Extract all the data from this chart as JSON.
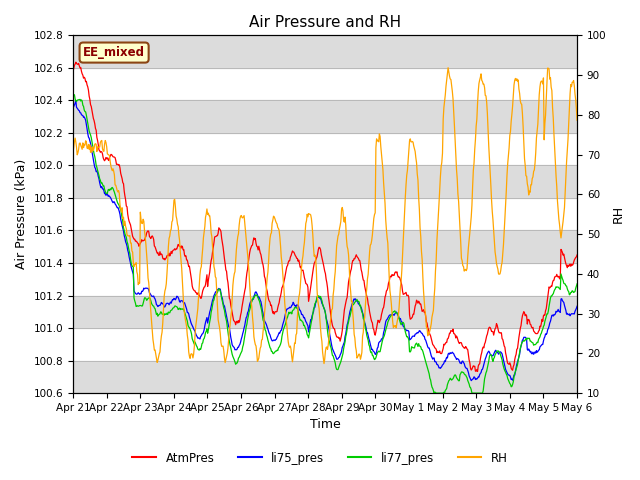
{
  "title": "Air Pressure and RH",
  "xlabel": "Time",
  "ylabel_left": "Air Pressure (kPa)",
  "ylabel_right": "RH",
  "ylim_left": [
    100.6,
    102.8
  ],
  "ylim_right": [
    10,
    100
  ],
  "yticks_left": [
    100.6,
    100.8,
    101.0,
    101.2,
    101.4,
    101.6,
    101.8,
    102.0,
    102.2,
    102.4,
    102.6,
    102.8
  ],
  "yticks_right": [
    10,
    20,
    30,
    40,
    50,
    60,
    70,
    80,
    90,
    100
  ],
  "xtick_labels": [
    "Apr 21",
    "Apr 22",
    "Apr 23",
    "Apr 24",
    "Apr 25",
    "Apr 26",
    "Apr 27",
    "Apr 28",
    "Apr 29",
    "Apr 30",
    "May 1",
    "May 2",
    "May 3",
    "May 4",
    "May 5",
    "May 6"
  ],
  "annotation_text": "EE_mixed",
  "annotation_color": "#8B0000",
  "annotation_bg": "#FFFFCC",
  "annotation_border": "#8B4513",
  "series_colors": {
    "AtmPres": "#FF0000",
    "li75_pres": "#0000FF",
    "li77_pres": "#00CC00",
    "RH": "#FFA500"
  },
  "legend_labels": [
    "AtmPres",
    "li75_pres",
    "li77_pres",
    "RH"
  ],
  "background_color": "#FFFFFF",
  "band_color": "#DCDCDC",
  "title_fontsize": 11,
  "axis_label_fontsize": 9,
  "tick_fontsize": 7.5,
  "legend_fontsize": 8.5
}
